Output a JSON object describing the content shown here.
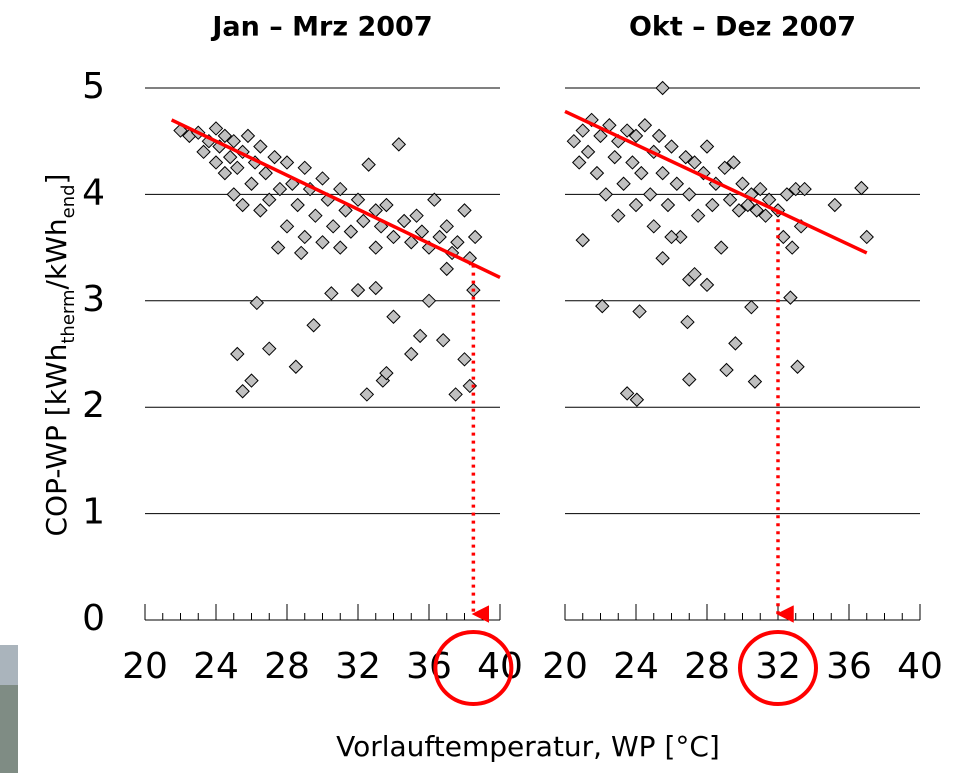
{
  "chart_data": [
    {
      "type": "scatter",
      "title": "Jan – Mrz 2007",
      "ylabel": [
        "COP-WP [kWh",
        "therm",
        "/kWh",
        "end",
        "]"
      ],
      "xlabel": "Vorlauftemperatur, WP [°C]",
      "x": [
        22,
        22.5,
        23,
        23.3,
        23.6,
        24,
        24,
        24.2,
        24.5,
        24.5,
        24.8,
        25,
        25,
        25.2,
        25.5,
        25.5,
        25.8,
        26,
        26.2,
        26.5,
        26.5,
        26.8,
        27,
        27.3,
        27.6,
        28,
        28,
        28.3,
        28.6,
        29,
        29,
        29.3,
        29.6,
        30,
        30,
        30.3,
        30.6,
        31,
        31,
        31.3,
        31.6,
        32,
        32.3,
        32.6,
        33,
        33,
        33.3,
        33.6,
        34,
        34.3,
        34.6,
        35,
        35.3,
        35.6,
        36,
        36.3,
        36.6,
        37,
        37.3,
        37.6,
        38,
        38.3,
        38.6,
        27.5,
        28.8,
        25.2,
        25.5,
        26,
        26.3,
        27,
        28.5,
        29.5,
        30.5,
        32.5,
        33,
        33.4,
        33.6,
        34,
        35,
        35.5,
        36,
        36.8,
        37.5,
        38,
        38.3,
        37,
        38.5,
        32
      ],
      "y": [
        4.6,
        4.55,
        4.58,
        4.4,
        4.5,
        4.62,
        4.3,
        4.45,
        4.2,
        4.55,
        4.35,
        4,
        4.5,
        4.25,
        4.4,
        3.9,
        4.55,
        4.1,
        4.3,
        3.85,
        4.45,
        4.2,
        3.95,
        4.35,
        4.05,
        4.3,
        3.7,
        4.1,
        3.9,
        4.25,
        3.6,
        4.05,
        3.8,
        4.15,
        3.55,
        3.95,
        3.7,
        4.05,
        3.5,
        3.85,
        3.65,
        3.95,
        3.75,
        4.28,
        3.85,
        3.5,
        3.7,
        3.9,
        3.6,
        4.47,
        3.75,
        3.55,
        3.8,
        3.65,
        3.5,
        3.95,
        3.6,
        3.7,
        3.45,
        3.55,
        3.85,
        3.4,
        3.6,
        3.5,
        3.45,
        2.5,
        2.15,
        2.25,
        2.98,
        2.55,
        2.38,
        2.77,
        3.07,
        2.12,
        3.12,
        2.25,
        2.32,
        2.85,
        2.5,
        2.67,
        3,
        2.63,
        2.12,
        2.45,
        2.2,
        3.3,
        3.1,
        3.1
      ],
      "color": "#c0c0c0",
      "xlim": [
        20,
        40
      ],
      "xticks": [
        20,
        24,
        28,
        32,
        36,
        40
      ],
      "xminorticks": [
        20,
        21,
        22,
        23,
        24,
        25,
        26,
        27,
        28,
        29,
        30,
        31,
        32,
        33,
        34,
        35,
        36,
        37,
        38,
        39,
        40
      ],
      "ylim": [
        0,
        5
      ],
      "yticks": [
        0,
        1,
        2,
        3,
        4,
        5
      ],
      "ytick_labels": true,
      "grid": true,
      "trend": {
        "x": [
          21.5,
          40
        ],
        "y": [
          4.7,
          3.22
        ],
        "color": "#ff0000"
      },
      "highlight_x": 38.5
    },
    {
      "type": "scatter",
      "title": "Okt – Dez 2007",
      "x": [
        20.5,
        20.8,
        21,
        21.3,
        21.5,
        21.8,
        22,
        22.3,
        22.5,
        22.8,
        23,
        23,
        23.3,
        23.5,
        23.8,
        24,
        24,
        24.3,
        24.5,
        24.8,
        25,
        25,
        25.3,
        25.5,
        25.8,
        26,
        26.3,
        26.5,
        26.8,
        27,
        27.3,
        27.5,
        27.8,
        28,
        28.3,
        28.5,
        28.8,
        29,
        29.3,
        29.5,
        29.8,
        30,
        30.3,
        30.5,
        30.8,
        31,
        31.3,
        31.5,
        32,
        32.3,
        32.5,
        32.8,
        33,
        33.3,
        33.5,
        27,
        27.3,
        28,
        25.5,
        26,
        25.5,
        22.1,
        23.5,
        24.05,
        26.9,
        27,
        29.1,
        29.6,
        30.7,
        30.5,
        32.7,
        33.1,
        36.7,
        37,
        35.2,
        21,
        24.2
      ],
      "y": [
        4.5,
        4.3,
        4.6,
        4.4,
        4.7,
        4.2,
        4.55,
        4,
        4.65,
        4.35,
        4.5,
        3.8,
        4.1,
        4.6,
        4.3,
        3.9,
        4.55,
        4.2,
        4.65,
        4,
        4.4,
        3.7,
        4.55,
        4.2,
        3.9,
        4.45,
        4.1,
        3.6,
        4.35,
        4,
        4.3,
        3.8,
        4.2,
        4.45,
        3.9,
        4.1,
        3.5,
        4.25,
        3.95,
        4.3,
        3.85,
        4.1,
        3.9,
        4,
        3.85,
        4.05,
        3.8,
        3.95,
        3.85,
        3.6,
        4,
        3.5,
        4.05,
        3.7,
        4.05,
        3.2,
        3.25,
        3.15,
        3.4,
        3.6,
        5,
        2.95,
        2.13,
        2.07,
        2.8,
        2.26,
        2.35,
        2.6,
        2.24,
        2.94,
        3.03,
        2.38,
        4.06,
        3.6,
        3.9,
        3.57,
        2.9
      ],
      "color": "#c0c0c0",
      "xlim": [
        20,
        40
      ],
      "xticks": [
        20,
        24,
        28,
        32,
        36,
        40
      ],
      "xminorticks": [
        20,
        21,
        22,
        23,
        24,
        25,
        26,
        27,
        28,
        29,
        30,
        31,
        32,
        33,
        34,
        35,
        36,
        37,
        38,
        39,
        40
      ],
      "ylim": [
        0,
        5
      ],
      "yticks": [
        0,
        1,
        2,
        3,
        4,
        5
      ],
      "ytick_labels": false,
      "grid": true,
      "trend": {
        "x": [
          20,
          37
        ],
        "y": [
          4.78,
          3.45
        ],
        "color": "#ff0000"
      },
      "highlight_x": 32
    }
  ]
}
